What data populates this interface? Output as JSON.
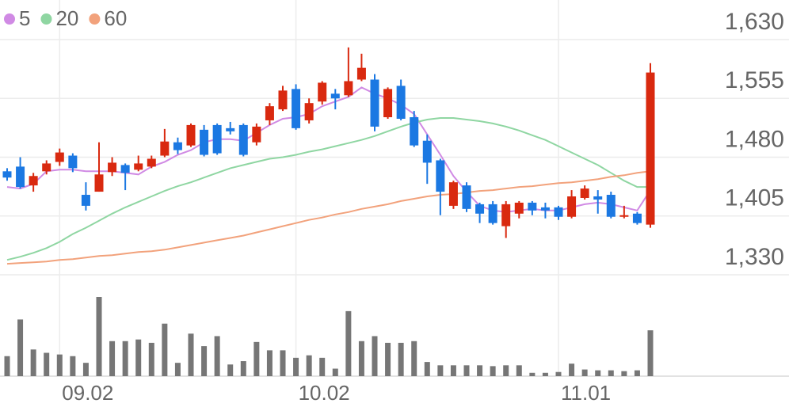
{
  "chart_data": {
    "type": "candlestick",
    "categories": [
      null,
      null,
      null,
      null,
      "09.02",
      null,
      null,
      null,
      null,
      null,
      null,
      null,
      null,
      null,
      null,
      null,
      null,
      null,
      null,
      null,
      null,
      null,
      "10.02",
      null,
      null,
      null,
      null,
      null,
      null,
      null,
      null,
      null,
      null,
      null,
      null,
      null,
      null,
      null,
      null,
      null,
      null,
      null,
      "11.01",
      null,
      null,
      null,
      null,
      null,
      null,
      null
    ],
    "open": [
      1462,
      1468,
      1444,
      1462,
      1474,
      1482,
      1432,
      1436,
      1461,
      1470,
      1464,
      1468,
      1482,
      1499,
      1495,
      1515,
      1521,
      1517,
      1521,
      1499,
      1527,
      1541,
      1567,
      1527,
      1551,
      1561,
      1559,
      1579,
      1579,
      1531,
      1571,
      1531,
      1501,
      1476,
      1418,
      1444,
      1420,
      1420,
      1392,
      1408,
      1422,
      1416,
      1416,
      1404,
      1428,
      1430,
      1432,
      1404,
      1408,
      1394
    ],
    "high": [
      1466,
      1480,
      1460,
      1476,
      1491,
      1485,
      1448,
      1499,
      1480,
      1472,
      1482,
      1482,
      1516,
      1505,
      1523,
      1521,
      1523,
      1525,
      1523,
      1523,
      1549,
      1571,
      1573,
      1555,
      1577,
      1567,
      1620,
      1612,
      1586,
      1569,
      1579,
      1539,
      1509,
      1478,
      1450,
      1448,
      1422,
      1424,
      1424,
      1424,
      1424,
      1422,
      1418,
      1438,
      1444,
      1438,
      1436,
      1418,
      1410,
      1600
    ],
    "low": [
      1450,
      1440,
      1436,
      1458,
      1469,
      1461,
      1412,
      1436,
      1456,
      1438,
      1462,
      1466,
      1480,
      1484,
      1493,
      1481,
      1483,
      1509,
      1481,
      1495,
      1521,
      1539,
      1515,
      1523,
      1547,
      1541,
      1557,
      1577,
      1513,
      1529,
      1527,
      1493,
      1446,
      1406,
      1414,
      1410,
      1396,
      1394,
      1377,
      1402,
      1406,
      1402,
      1400,
      1402,
      1426,
      1408,
      1402,
      1402,
      1394,
      1390
    ],
    "close": [
      1454,
      1442,
      1456,
      1472,
      1486,
      1466,
      1418,
      1458,
      1473,
      1460,
      1472,
      1478,
      1500,
      1489,
      1521,
      1483,
      1485,
      1513,
      1483,
      1519,
      1545,
      1565,
      1517,
      1549,
      1575,
      1555,
      1577,
      1594,
      1519,
      1567,
      1529,
      1495,
      1473,
      1436,
      1448,
      1414,
      1408,
      1396,
      1420,
      1422,
      1412,
      1412,
      1404,
      1430,
      1440,
      1426,
      1404,
      1406,
      1396,
      1588
    ],
    "volume": [
      24,
      68,
      32,
      28,
      26,
      24,
      16,
      95,
      42,
      42,
      44,
      40,
      63,
      16,
      51,
      36,
      48,
      14,
      18,
      41,
      31,
      31,
      22,
      25,
      22,
      9,
      78,
      42,
      48,
      40,
      40,
      42,
      17,
      13,
      13,
      13,
      13,
      12,
      13,
      13,
      4,
      4,
      5,
      15,
      8,
      7,
      7,
      6,
      7,
      55
    ],
    "up_color": "#d9290f",
    "down_color": "#1b78e2",
    "volume_color": "#767676",
    "series": [
      {
        "name": "5",
        "color": "#d08ae4",
        "values": [
          1442,
          1440,
          1446,
          1462,
          1464,
          1464,
          1462,
          1462,
          1462,
          1460,
          1458,
          1468,
          1474,
          1483,
          1489,
          1499,
          1503,
          1503,
          1501,
          1511,
          1521,
          1529,
          1531,
          1535,
          1545,
          1551,
          1557,
          1569,
          1561,
          1555,
          1547,
          1535,
          1509,
          1483,
          1456,
          1436,
          1418,
          1412,
          1410,
          1412,
          1414,
          1412,
          1412,
          1416,
          1420,
          1422,
          1420,
          1416,
          1412,
          1438
        ]
      },
      {
        "name": "20",
        "color": "#8fd6a2",
        "values": [
          1349,
          1353,
          1358,
          1364,
          1372,
          1382,
          1390,
          1399,
          1408,
          1416,
          1423,
          1430,
          1437,
          1443,
          1448,
          1454,
          1460,
          1466,
          1470,
          1474,
          1478,
          1480,
          1483,
          1487,
          1490,
          1494,
          1498,
          1502,
          1507,
          1513,
          1519,
          1524,
          1528,
          1530,
          1530,
          1528,
          1526,
          1523,
          1519,
          1514,
          1508,
          1502,
          1494,
          1486,
          1478,
          1470,
          1460,
          1450,
          1442,
          1442
        ]
      },
      {
        "name": "60",
        "color": "#f2a27c",
        "values": [
          1344,
          1345,
          1346,
          1347,
          1349,
          1350,
          1352,
          1354,
          1355,
          1357,
          1359,
          1360,
          1362,
          1365,
          1368,
          1371,
          1374,
          1377,
          1380,
          1384,
          1388,
          1392,
          1396,
          1400,
          1403,
          1407,
          1410,
          1414,
          1417,
          1420,
          1424,
          1427,
          1430,
          1432,
          1433,
          1435,
          1437,
          1438,
          1440,
          1442,
          1443,
          1445,
          1447,
          1448,
          1450,
          1452,
          1455,
          1457,
          1460,
          1462
        ]
      }
    ],
    "ylim": [
      1330,
      1630
    ],
    "yticks": [
      {
        "value": 1630,
        "label": "1,630"
      },
      {
        "value": 1555,
        "label": "1,555"
      },
      {
        "value": 1480,
        "label": "1,480"
      },
      {
        "value": 1405,
        "label": "1,405"
      },
      {
        "value": 1330,
        "label": "1,330"
      }
    ],
    "grid": true
  }
}
